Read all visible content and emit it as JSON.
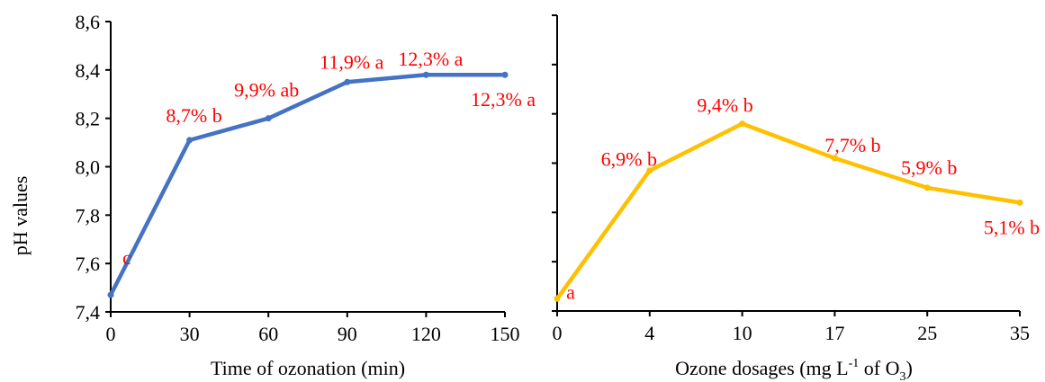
{
  "chart_data": [
    {
      "type": "line",
      "xlabel": "Time of ozonation (min)",
      "ylabel": "pH values",
      "ylim": [
        7.4,
        8.6
      ],
      "yticks": [
        "7,4",
        "7,6",
        "7,8",
        "8,0",
        "8,2",
        "8,4",
        "8,6"
      ],
      "categories": [
        "0",
        "30",
        "60",
        "90",
        "120",
        "150"
      ],
      "series": [
        {
          "color": "#4472C4",
          "values": [
            7.47,
            8.11,
            8.2,
            8.35,
            8.38,
            8.38
          ],
          "labels": [
            "c",
            "8,7% b",
            "9,9% ab",
            "11,9% a",
            "12,3% a",
            "12,3% a"
          ]
        }
      ],
      "grid": false
    },
    {
      "type": "line",
      "xlabel": {
        "prefix": "Ozone dosages (mg L",
        "sup": "-1",
        "mid": " of O",
        "sub": "3",
        "suffix": ")"
      },
      "ylim": [
        7.4,
        8.6
      ],
      "categories": [
        "0",
        "4",
        "10",
        "17",
        "25",
        "35"
      ],
      "series": [
        {
          "color": "#FFC000",
          "values": [
            7.45,
            7.97,
            8.16,
            8.02,
            7.9,
            7.84
          ],
          "labels": [
            "a",
            "6,9% b",
            "9,4% b",
            "7,7% b",
            "5,9% b",
            "5,1% b"
          ]
        }
      ],
      "grid": false
    }
  ]
}
